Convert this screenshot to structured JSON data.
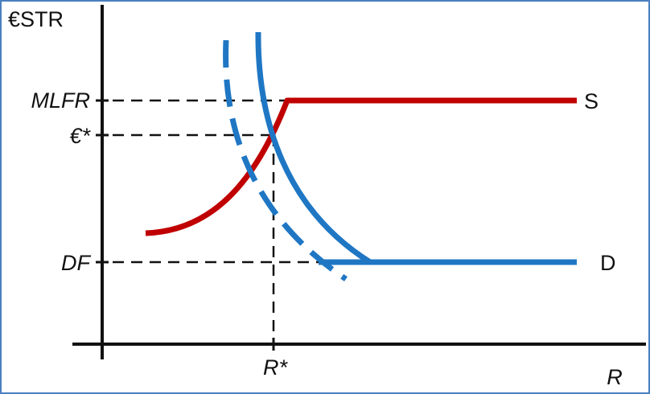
{
  "axes": {
    "y_label": "€STR",
    "x_label": "R"
  },
  "ticks": {
    "y": [
      "MLFR",
      "€*",
      "DF"
    ],
    "x": [
      "R*"
    ]
  },
  "curves": {
    "supply_label": "S",
    "demand_label": "D"
  },
  "colors": {
    "supply": "#c00000",
    "demand": "#1f77c4",
    "axis": "#111111",
    "guide": "#111111",
    "frame": "#4a7fc1"
  }
}
